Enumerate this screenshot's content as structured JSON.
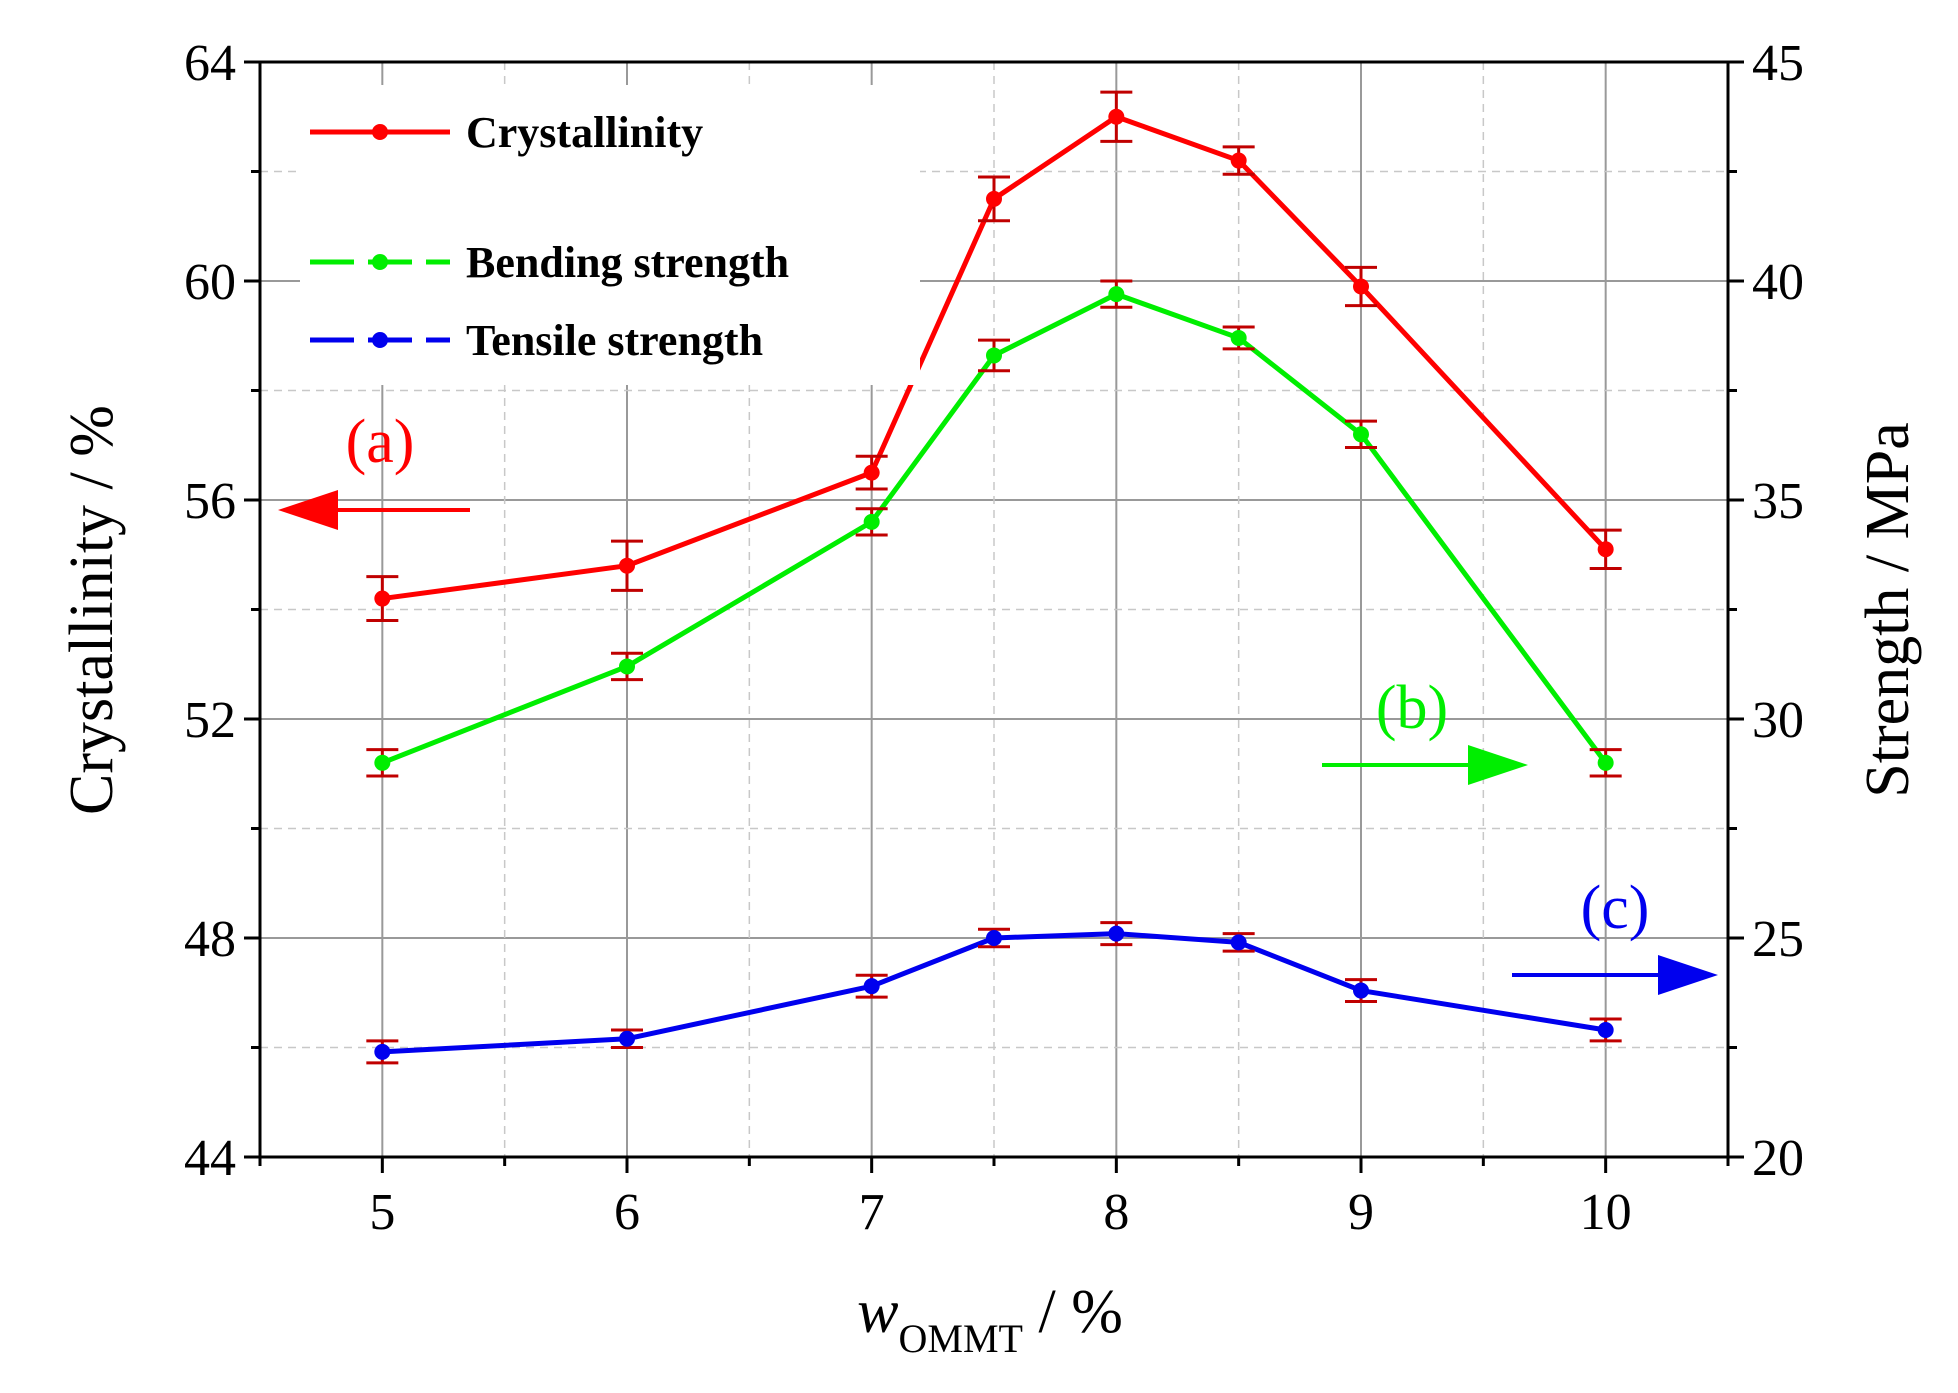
{
  "chart_data": {
    "type": "line",
    "x": [
      5,
      6,
      7,
      7.5,
      8,
      8.5,
      9,
      10
    ],
    "xlim": [
      4.5,
      10.5
    ],
    "xticks": [
      "5",
      "6",
      "7",
      "8",
      "9",
      "10"
    ],
    "xlabel_main": "w",
    "xlabel_sub": "OMMT",
    "xlabel_unit": " / %",
    "ylabel_left": "Crystallinity / %",
    "ylim_left": [
      44,
      64
    ],
    "yticks_left": [
      "44",
      "48",
      "52",
      "56",
      "60",
      "64"
    ],
    "ylabel_right": "Strength / MPa",
    "ylim_right": [
      20,
      45
    ],
    "yticks_right": [
      "20",
      "25",
      "30",
      "35",
      "40",
      "45"
    ],
    "grid": true,
    "legend_position": "top-left",
    "series": [
      {
        "name": "Crystallinity",
        "axis": "left",
        "color": "#ff0000",
        "values": [
          54.2,
          54.8,
          56.5,
          61.5,
          63.0,
          62.2,
          59.9,
          55.1
        ],
        "errors": [
          0.4,
          0.45,
          0.3,
          0.4,
          0.45,
          0.25,
          0.35,
          0.35
        ]
      },
      {
        "name": "Bending strength",
        "axis": "right",
        "color": "#00ee00",
        "values": [
          29.0,
          31.2,
          34.5,
          38.3,
          39.7,
          38.7,
          36.5,
          29.0
        ],
        "errors": [
          0.3,
          0.3,
          0.3,
          0.35,
          0.3,
          0.25,
          0.3,
          0.3
        ]
      },
      {
        "name": "Tensile strength",
        "axis": "right",
        "color": "#0000ee",
        "values": [
          22.4,
          22.7,
          23.9,
          25.0,
          25.1,
          24.9,
          23.8,
          22.9
        ],
        "errors": [
          0.25,
          0.2,
          0.25,
          0.2,
          0.25,
          0.2,
          0.25,
          0.25
        ]
      }
    ],
    "annotations": [
      {
        "label": "(a)",
        "color": "#ff0000",
        "direction": "left"
      },
      {
        "label": "(b)",
        "color": "#00ee00",
        "direction": "right"
      },
      {
        "label": "(c)",
        "color": "#0000ee",
        "direction": "right"
      }
    ]
  }
}
